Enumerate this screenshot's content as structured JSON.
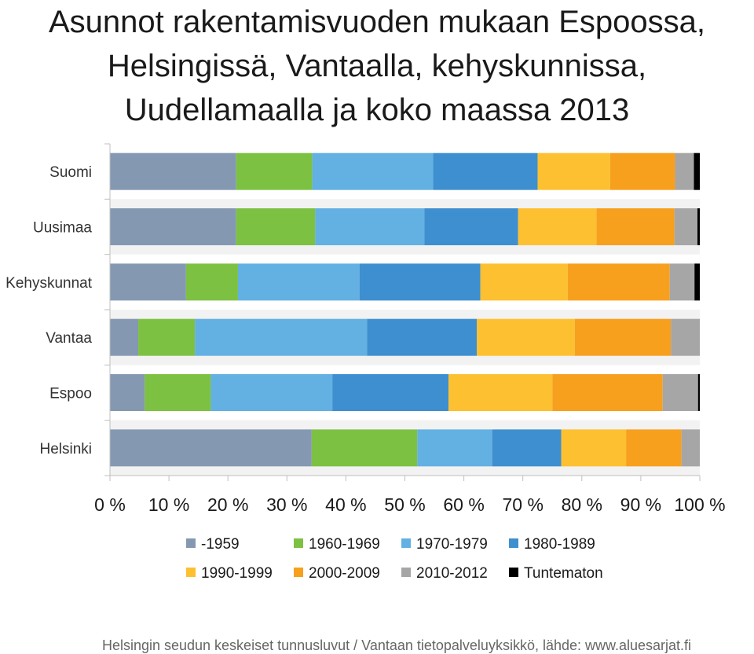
{
  "chart_data": {
    "type": "bar",
    "orientation": "horizontal",
    "stacked": true,
    "percent": true,
    "title": "Asunnot rakentamisvuoden mukaan Espoossa,\nHelsingissä, Vantaalla, kehyskunnissa,\nUudellamaalla ja koko maassa 2013",
    "categories": [
      "Suomi",
      "Uusimaa",
      "Kehyskunnat",
      "Vantaa",
      "Espoo",
      "Helsinki"
    ],
    "xlim": [
      0,
      100
    ],
    "x_ticks": [
      "0 %",
      "10 %",
      "20 %",
      "30 %",
      "40 %",
      "50 %",
      "60 %",
      "70 %",
      "80 %",
      "90 %",
      "100 %"
    ],
    "grid": false,
    "legend_position": "bottom",
    "series": [
      {
        "name": "-1959",
        "color": "#8499b1",
        "values": [
          21.4,
          21.4,
          12.9,
          4.8,
          5.9,
          34.2
        ]
      },
      {
        "name": "1960-1969",
        "color": "#7dc142",
        "values": [
          12.9,
          13.4,
          8.8,
          9.6,
          11.2,
          17.9
        ]
      },
      {
        "name": "1970-1979",
        "color": "#63b0e2",
        "values": [
          20.5,
          18.5,
          20.6,
          29.2,
          20.6,
          12.7
        ]
      },
      {
        "name": "1980-1989",
        "color": "#3e8fcf",
        "values": [
          17.7,
          15.9,
          20.5,
          18.6,
          19.7,
          11.7
        ]
      },
      {
        "name": "1990-1999",
        "color": "#fdc030",
        "values": [
          12.3,
          13.3,
          14.8,
          16.6,
          17.6,
          11.0
        ]
      },
      {
        "name": "2000-2009",
        "color": "#f7a01e",
        "values": [
          11.0,
          13.2,
          17.3,
          16.3,
          18.7,
          9.4
        ]
      },
      {
        "name": "2010-2012",
        "color": "#a6a6a6",
        "values": [
          3.2,
          3.9,
          4.2,
          4.9,
          6.0,
          3.1
        ]
      },
      {
        "name": "Tuntematon",
        "color": "#000000",
        "values": [
          1.0,
          0.4,
          0.9,
          0.0,
          0.3,
          0.0
        ]
      }
    ]
  },
  "footer": {
    "source": "Helsingin seudun keskeiset tunnusluvut / Vantaan tietopalveluyksikkö, lähde: www.aluesarjat.fi"
  }
}
